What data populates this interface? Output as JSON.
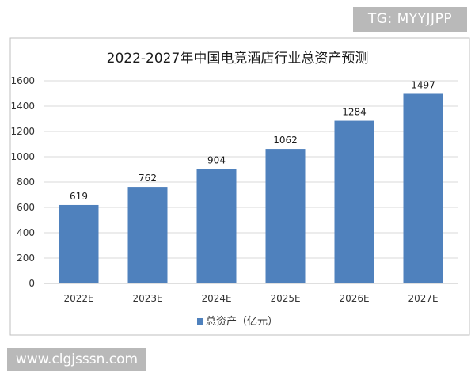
{
  "watermarks": {
    "top_right": "TG: MYYJJPP",
    "bottom_left": "www.clgjsssn.com"
  },
  "chart_data": {
    "type": "bar",
    "title": "2022-2027年中国电竞酒店行业总资产预测",
    "categories": [
      "2022E",
      "2023E",
      "2024E",
      "2025E",
      "2026E",
      "2027E"
    ],
    "series": [
      {
        "name": "总资产（亿元）",
        "values": [
          619,
          762,
          904,
          1062,
          1284,
          1497
        ],
        "color": "#4f81bd"
      }
    ],
    "data_labels": [
      "619",
      "762",
      "904",
      "1062",
      "1284",
      "1497"
    ],
    "ylim": [
      0,
      1600
    ],
    "yticks": [
      0,
      200,
      400,
      600,
      800,
      1000,
      1200,
      1400,
      1600
    ],
    "grid": true,
    "legend_position": "bottom"
  }
}
